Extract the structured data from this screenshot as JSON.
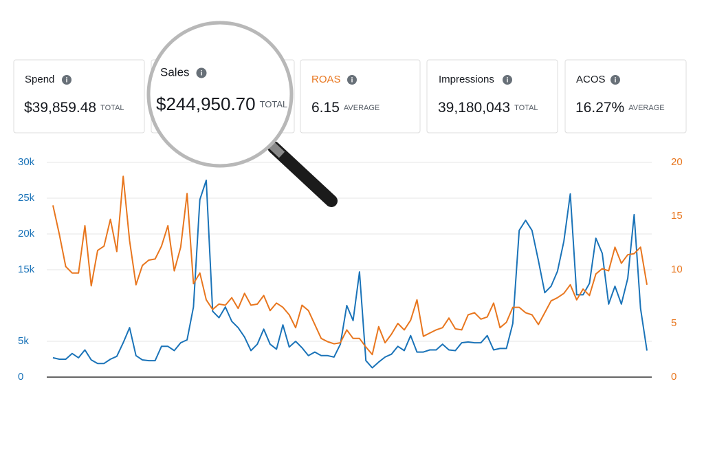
{
  "cards": [
    {
      "label": "Spend",
      "value": "$39,859.48",
      "suffix": "TOTAL"
    },
    {
      "label": "Sales",
      "value": "$244,950.70",
      "suffix": "TOTAL"
    },
    {
      "label": "ROAS",
      "value": "6.15",
      "suffix": "AVERAGE"
    },
    {
      "label": "Impressions",
      "value": "39,180,043",
      "suffix": "TOTAL"
    },
    {
      "label": "ACOS",
      "value": "16.27%",
      "suffix": "AVERAGE"
    }
  ],
  "chart_data": {
    "type": "line",
    "grid": true,
    "ylim": [
      0,
      30000
    ],
    "yticks": [
      0,
      {
        "value": 5000,
        "label": "5k"
      },
      {
        "value": 15000,
        "label": "15k"
      },
      {
        "value": 20000,
        "label": "20k"
      },
      {
        "value": 25000,
        "label": "25k"
      },
      {
        "value": 30000,
        "label": "30k"
      }
    ],
    "y2lim": [
      0,
      20
    ],
    "y2ticks": [
      0,
      5,
      10,
      15,
      20
    ],
    "series": [
      {
        "color": "#1a73b8",
        "values": [
          2700,
          2500,
          2500,
          3300,
          2700,
          3800,
          2400,
          1900,
          1900,
          2500,
          2900,
          4800,
          6900,
          3000,
          2400,
          2300,
          2300,
          4300,
          4300,
          3700,
          4800,
          5200,
          9800,
          24800,
          27500,
          9200,
          8300,
          9800,
          7800,
          6900,
          5600,
          3700,
          4600,
          6700,
          4600,
          3900,
          7300,
          4200,
          5000,
          4100,
          3000,
          3500,
          3000,
          3000,
          2800,
          4600,
          10000,
          7900,
          14700,
          2300,
          1300,
          2100,
          2800,
          3200,
          4300,
          3700,
          5800,
          3500,
          3500,
          3800,
          3800,
          4600,
          3800,
          3700,
          4800,
          4900,
          4800,
          4800,
          5800,
          3800,
          4000,
          4000,
          7500,
          20500,
          21900,
          20500,
          16300,
          11800,
          12700,
          14800,
          19000,
          25600,
          11500,
          11500,
          13100,
          19400,
          17300,
          10200,
          12700,
          10200,
          13800,
          22700,
          9600,
          3700
        ]
      },
      {
        "color": "#e8761e",
        "axis": "y2",
        "values": [
          16.0,
          13.3,
          10.3,
          9.7,
          9.7,
          14.1,
          8.5,
          11.8,
          12.2,
          14.7,
          11.7,
          18.7,
          12.7,
          8.6,
          10.4,
          10.9,
          11.0,
          12.2,
          14.1,
          9.9,
          12.1,
          17.1,
          8.7,
          9.7,
          7.2,
          6.3,
          6.8,
          6.7,
          7.4,
          6.4,
          7.8,
          6.7,
          6.8,
          7.6,
          6.2,
          6.9,
          6.5,
          5.8,
          4.6,
          6.7,
          6.2,
          4.9,
          3.6,
          3.3,
          3.1,
          3.2,
          4.4,
          3.6,
          3.6,
          2.8,
          2.1,
          4.7,
          3.2,
          4.0,
          5.0,
          4.4,
          5.3,
          7.2,
          3.8,
          4.1,
          4.4,
          4.6,
          5.5,
          4.5,
          4.4,
          5.8,
          6.0,
          5.4,
          5.6,
          6.9,
          4.6,
          5.1,
          6.5,
          6.5,
          6.0,
          5.8,
          4.9,
          6.0,
          7.1,
          7.4,
          7.8,
          8.6,
          7.2,
          8.2,
          7.6,
          9.6,
          10.1,
          9.9,
          12.1,
          10.6,
          11.4,
          11.5,
          12.1,
          8.6
        ]
      }
    ]
  }
}
